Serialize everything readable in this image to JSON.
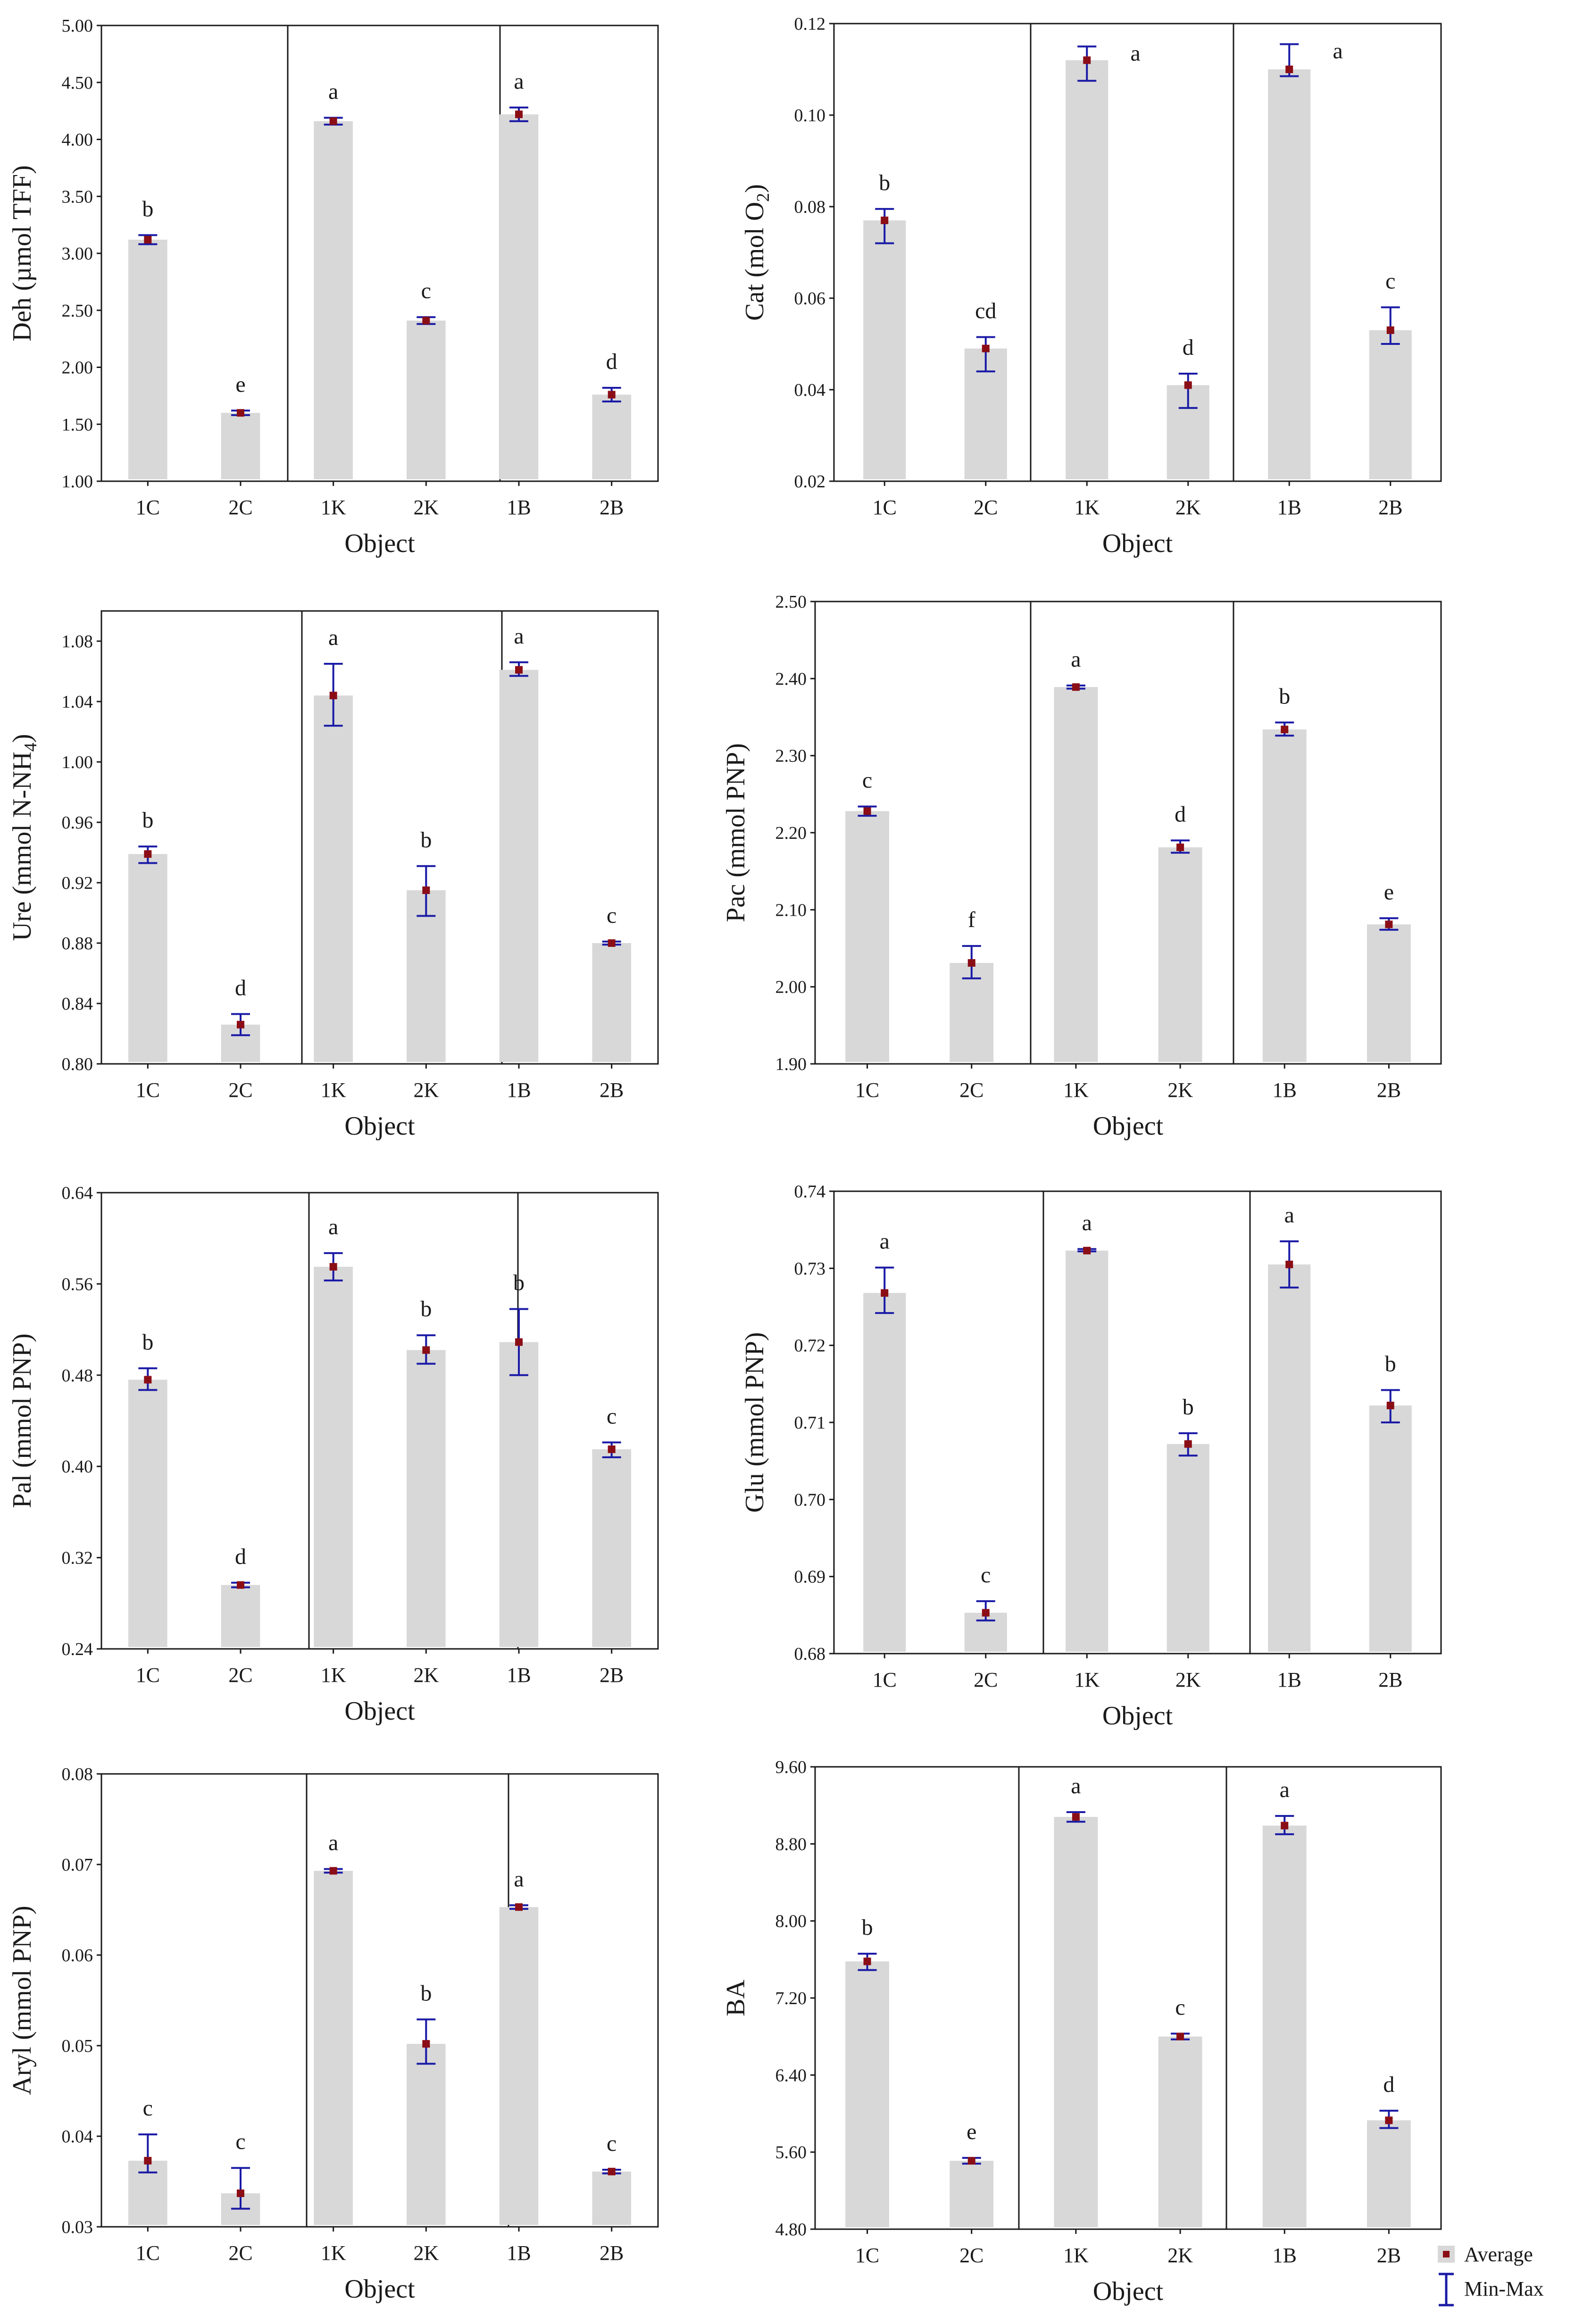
{
  "figure": {
    "legend": {
      "average_label": "Average",
      "minmax_label": "Min-Max"
    },
    "colors": {
      "bar": "#d8d8d8",
      "error": "#1a1aa6",
      "point": "#8b0e16",
      "axis": "#1a1a1a"
    }
  },
  "chart_data": [
    {
      "id": "deh",
      "type": "bar",
      "title": "",
      "xlabel": "Object",
      "ylabel_main": "Deh (µmol TFF)",
      "ylabel_sub": "",
      "categories": [
        "1C",
        "2C",
        "1K",
        "2K",
        "1B",
        "2B"
      ],
      "values": [
        3.12,
        1.6,
        4.16,
        2.41,
        4.22,
        1.76
      ],
      "errors": [
        [
          3.08,
          3.16
        ],
        [
          1.58,
          1.62
        ],
        [
          4.13,
          4.19
        ],
        [
          2.38,
          2.44
        ],
        [
          4.16,
          4.28
        ],
        [
          1.7,
          1.82
        ]
      ],
      "letters": [
        "b",
        "e",
        "a",
        "c",
        "a",
        "d"
      ],
      "ylim": [
        1.0,
        5.0
      ],
      "yticks": [
        "1.00",
        "1.50",
        "2.00",
        "2.50",
        "3.00",
        "3.50",
        "4.00",
        "4.50",
        "5.00"
      ]
    },
    {
      "id": "cat",
      "type": "bar",
      "title": "",
      "xlabel": "Object",
      "ylabel_main": "Cat (mol O",
      "ylabel_sub": "2",
      "ylabel_tail": ")",
      "categories": [
        "1C",
        "2C",
        "1K",
        "2K",
        "1B",
        "2B"
      ],
      "values": [
        0.077,
        0.049,
        0.112,
        0.041,
        0.11,
        0.053
      ],
      "errors": [
        [
          0.072,
          0.0795
        ],
        [
          0.044,
          0.0515
        ],
        [
          0.1075,
          0.115
        ],
        [
          0.036,
          0.0435
        ],
        [
          0.1085,
          0.1155
        ],
        [
          0.05,
          0.058
        ]
      ],
      "letters": [
        "b",
        "cd",
        "a",
        "d",
        "a",
        "c"
      ],
      "ylim": [
        0.02,
        0.12
      ],
      "yticks": [
        "0.02",
        "0.04",
        "0.06",
        "0.08",
        "0.10",
        "0.12"
      ]
    },
    {
      "id": "ure",
      "type": "bar",
      "title": "",
      "xlabel": "Object",
      "ylabel_main": "Ure (mmol N-NH",
      "ylabel_sub": "4",
      "ylabel_tail": ")",
      "categories": [
        "1C",
        "2C",
        "1K",
        "2K",
        "1B",
        "2B"
      ],
      "values": [
        0.939,
        0.826,
        1.044,
        0.915,
        1.061,
        0.88
      ],
      "errors": [
        [
          0.933,
          0.944
        ],
        [
          0.819,
          0.833
        ],
        [
          1.024,
          1.065
        ],
        [
          0.898,
          0.931
        ],
        [
          1.057,
          1.066
        ],
        [
          0.879,
          0.881
        ]
      ],
      "letters": [
        "b",
        "d",
        "a",
        "b",
        "a",
        "c"
      ],
      "ylim": [
        0.8,
        1.1
      ],
      "yticks": [
        "0.80",
        "0.84",
        "0.88",
        "0.92",
        "0.96",
        "1.00",
        "1.04",
        "1.08"
      ]
    },
    {
      "id": "pac",
      "type": "bar",
      "title": "",
      "xlabel": "Object",
      "ylabel_main": "Pac (mmol PNP)",
      "ylabel_sub": "",
      "categories": [
        "1C",
        "2C",
        "1K",
        "2K",
        "1B",
        "2B"
      ],
      "values": [
        2.228,
        2.031,
        2.389,
        2.181,
        2.334,
        2.081
      ],
      "errors": [
        [
          2.222,
          2.234
        ],
        [
          2.011,
          2.053
        ],
        [
          2.387,
          2.391
        ],
        [
          2.174,
          2.19
        ],
        [
          2.326,
          2.343
        ],
        [
          2.074,
          2.089
        ]
      ],
      "letters": [
        "c",
        "f",
        "a",
        "d",
        "b",
        "e"
      ],
      "ylim": [
        1.9,
        2.5
      ],
      "yticks": [
        "1.90",
        "2.00",
        "2.10",
        "2.20",
        "2.30",
        "2.40",
        "2.50"
      ]
    },
    {
      "id": "pal",
      "type": "bar",
      "title": "",
      "xlabel": "Object",
      "ylabel_main": "Pal (mmol PNP)",
      "ylabel_sub": "",
      "categories": [
        "1C",
        "2C",
        "1K",
        "2K",
        "1B",
        "2B"
      ],
      "values": [
        0.476,
        0.296,
        0.575,
        0.502,
        0.509,
        0.415
      ],
      "errors": [
        [
          0.467,
          0.486
        ],
        [
          0.294,
          0.298
        ],
        [
          0.563,
          0.587
        ],
        [
          0.49,
          0.515
        ],
        [
          0.48,
          0.538
        ],
        [
          0.408,
          0.421
        ]
      ],
      "letters": [
        "b",
        "d",
        "a",
        "b",
        "b",
        "c"
      ],
      "ylim": [
        0.24,
        0.64
      ],
      "yticks": [
        "0.24",
        "0.32",
        "0.40",
        "0.48",
        "0.56",
        "0.64"
      ]
    },
    {
      "id": "glu",
      "type": "bar",
      "title": "",
      "xlabel": "Object",
      "ylabel_main": "Glu (mmol PNP)",
      "ylabel_sub": "",
      "categories": [
        "1C",
        "2C",
        "1K",
        "2K",
        "1B",
        "2B"
      ],
      "values": [
        0.7268,
        0.6853,
        0.7323,
        0.7072,
        0.7305,
        0.7122
      ],
      "errors": [
        [
          0.7242,
          0.7301
        ],
        [
          0.6843,
          0.6868
        ],
        [
          0.7322,
          0.7325
        ],
        [
          0.7057,
          0.7086
        ],
        [
          0.7275,
          0.7335
        ],
        [
          0.71,
          0.7142
        ]
      ],
      "letters": [
        "a",
        "c",
        "a",
        "b",
        "a",
        "b"
      ],
      "ylim": [
        0.68,
        0.74
      ],
      "yticks": [
        "0.68",
        "0.69",
        "0.70",
        "0.71",
        "0.72",
        "0.73",
        "0.74"
      ]
    },
    {
      "id": "aryl",
      "type": "bar",
      "title": "",
      "xlabel": "Object",
      "ylabel_main": "Aryl (mmol PNP)",
      "ylabel_sub": "",
      "categories": [
        "1C",
        "2C",
        "1K",
        "2K",
        "1B",
        "2B"
      ],
      "values": [
        0.0373,
        0.0337,
        0.0693,
        0.0502,
        0.0653,
        0.0361
      ],
      "errors": [
        [
          0.036,
          0.0402
        ],
        [
          0.032,
          0.0365
        ],
        [
          0.0691,
          0.0695
        ],
        [
          0.048,
          0.0529
        ],
        [
          0.0651,
          0.0655
        ],
        [
          0.0359,
          0.0363
        ]
      ],
      "letters": [
        "c",
        "c",
        "a",
        "b",
        "a",
        "c"
      ],
      "ylim": [
        0.03,
        0.08
      ],
      "yticks": [
        "0.03",
        "0.04",
        "0.05",
        "0.06",
        "0.07",
        "0.08"
      ]
    },
    {
      "id": "ba",
      "type": "bar",
      "title": "",
      "xlabel": "Object",
      "ylabel_main": "BA",
      "ylabel_sub": "",
      "categories": [
        "1C",
        "2C",
        "1K",
        "2K",
        "1B",
        "2B"
      ],
      "values": [
        7.58,
        5.51,
        9.08,
        6.8,
        8.99,
        5.93
      ],
      "errors": [
        [
          7.49,
          7.66
        ],
        [
          5.48,
          5.54
        ],
        [
          9.03,
          9.13
        ],
        [
          6.77,
          6.83
        ],
        [
          8.9,
          9.09
        ],
        [
          5.85,
          6.03
        ]
      ],
      "letters": [
        "b",
        "e",
        "a",
        "c",
        "a",
        "d"
      ],
      "ylim": [
        4.8,
        9.6
      ],
      "yticks": [
        "4.80",
        "5.60",
        "6.40",
        "7.20",
        "8.00",
        "8.80",
        "9.60"
      ]
    }
  ]
}
